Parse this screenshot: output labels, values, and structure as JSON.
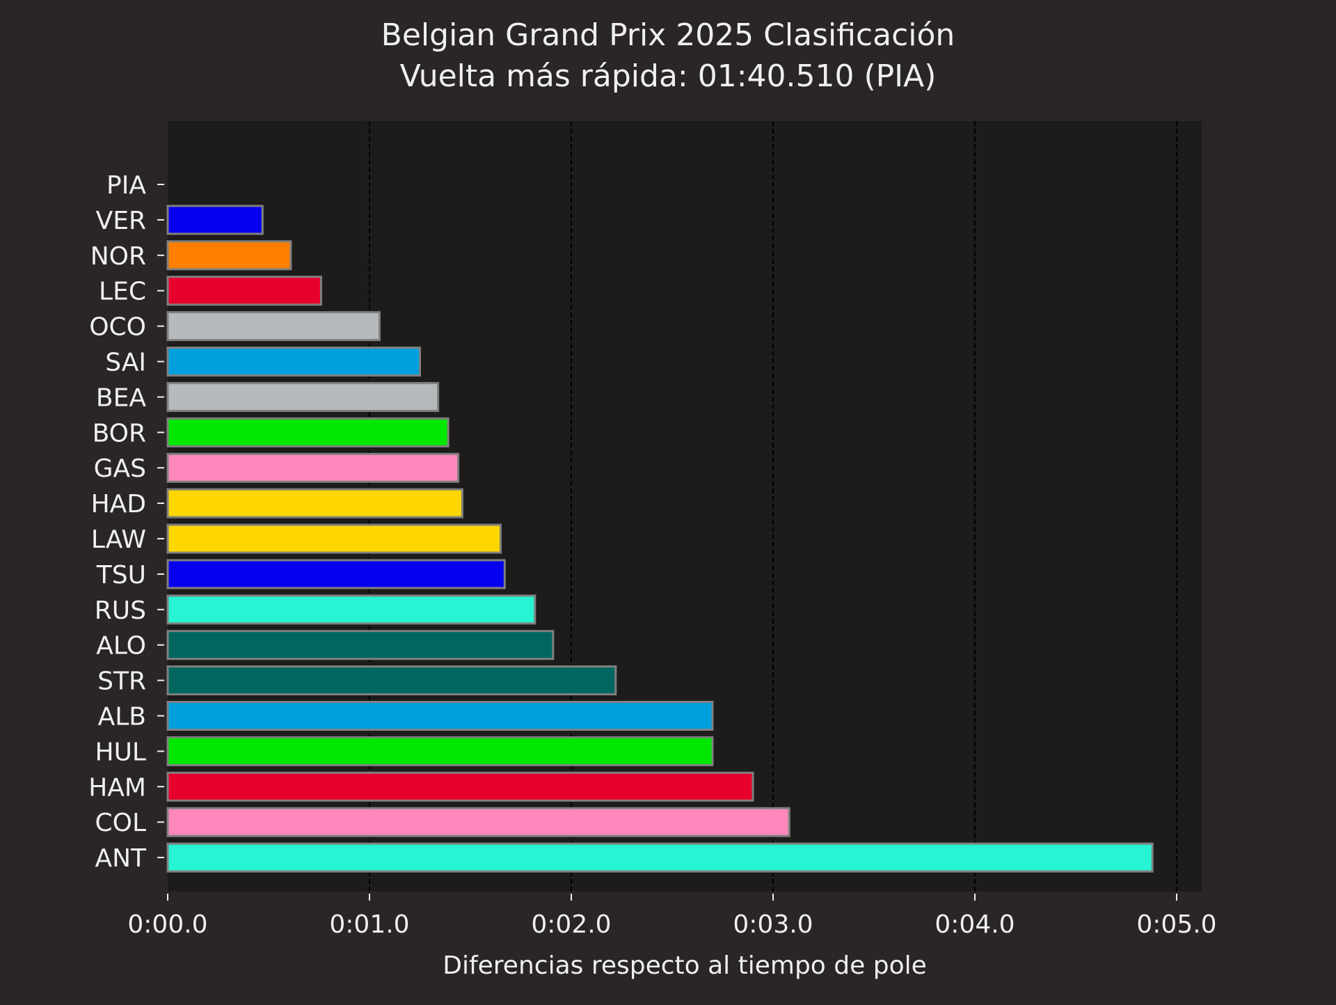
{
  "chart_data": {
    "type": "bar",
    "orientation": "horizontal",
    "title": "Belgian Grand Prix 2025 Clasificación",
    "subtitle": "Vuelta más rápida: 01:40.510 (PIA)",
    "xlabel": "Diferencias respecto al tiempo de pole",
    "ylabel": "",
    "xlim": [
      0,
      5.13
    ],
    "x_ticks": [
      0,
      1,
      2,
      3,
      4,
      5
    ],
    "x_tick_labels": [
      "0:00.0",
      "0:01.0",
      "0:02.0",
      "0:03.0",
      "0:04.0",
      "0:05.0"
    ],
    "grid": "vertical dashed",
    "legend": "none",
    "categories": [
      "PIA",
      "VER",
      "NOR",
      "LEC",
      "OCO",
      "SAI",
      "BEA",
      "BOR",
      "GAS",
      "HAD",
      "LAW",
      "TSU",
      "RUS",
      "ALO",
      "STR",
      "ALB",
      "HUL",
      "HAM",
      "COL",
      "ANT"
    ],
    "values": [
      0.0,
      0.47,
      0.61,
      0.76,
      1.05,
      1.25,
      1.34,
      1.39,
      1.44,
      1.46,
      1.65,
      1.67,
      1.82,
      1.91,
      2.22,
      2.7,
      2.7,
      2.9,
      3.08,
      4.88
    ],
    "colors": [
      "#FF8000",
      "#0600EF",
      "#FF8000",
      "#E8002D",
      "#B6BABD",
      "#00A0DE",
      "#B6BABD",
      "#00E701",
      "#FF87BC",
      "#FFD700",
      "#FFD700",
      "#0600EF",
      "#27F4D2",
      "#00665F",
      "#00665F",
      "#00A0DE",
      "#00E701",
      "#E8002D",
      "#FF87BC",
      "#27F4D2"
    ],
    "bar_edge_color": "#808080",
    "figure_background": "#292625",
    "plot_background": "#1e1c1b",
    "grid_color": "#000000"
  }
}
